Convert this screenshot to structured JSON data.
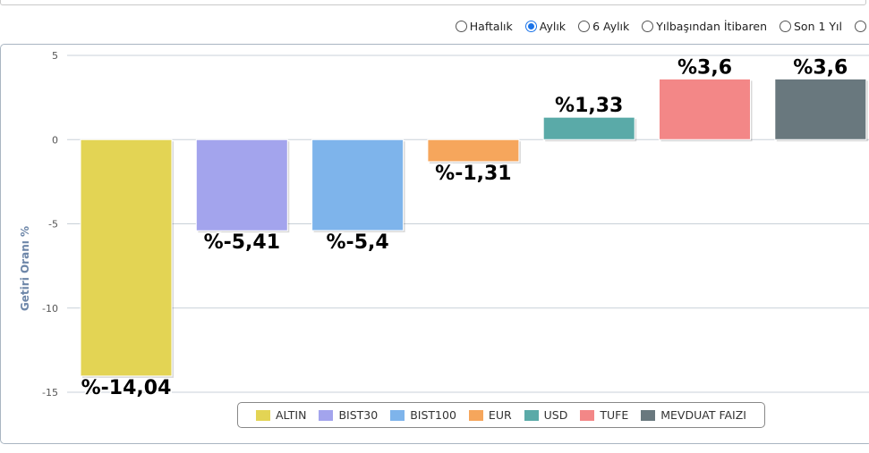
{
  "periods": [
    {
      "label": "Haftalık",
      "checked": false
    },
    {
      "label": "Aylık",
      "checked": true
    },
    {
      "label": "6 Aylık",
      "checked": false
    },
    {
      "label": "Yılbaşından İtibaren",
      "checked": false
    },
    {
      "label": "Son 1 Yıl",
      "checked": false
    },
    {
      "label": "",
      "checked": false
    }
  ],
  "chart_data": {
    "type": "bar",
    "ylabel": "Getiri Oranı %",
    "ylim": [
      -15,
      5
    ],
    "yticks": [
      5,
      0,
      -5,
      -10,
      -15
    ],
    "grid": true,
    "legend_position": "bottom",
    "series": [
      {
        "name": "ALTIN",
        "value": -14.04,
        "label": "%-14,04",
        "color": "#e3d454"
      },
      {
        "name": "BIST30",
        "value": -5.41,
        "label": "%-5,41",
        "color": "#a3a4ed"
      },
      {
        "name": "BIST100",
        "value": -5.4,
        "label": "%-5,4",
        "color": "#7eb4eb"
      },
      {
        "name": "EUR",
        "value": -1.31,
        "label": "%-1,31",
        "color": "#f6a65c"
      },
      {
        "name": "USD",
        "value": 1.33,
        "label": "%1,33",
        "color": "#5aaaa8"
      },
      {
        "name": "TUFE",
        "value": 3.6,
        "label": "%3,6",
        "color": "#f38787"
      },
      {
        "name": "MEVDUAT FAIZI",
        "value": 3.6,
        "label": "%3,6",
        "color": "#69787e"
      }
    ]
  }
}
